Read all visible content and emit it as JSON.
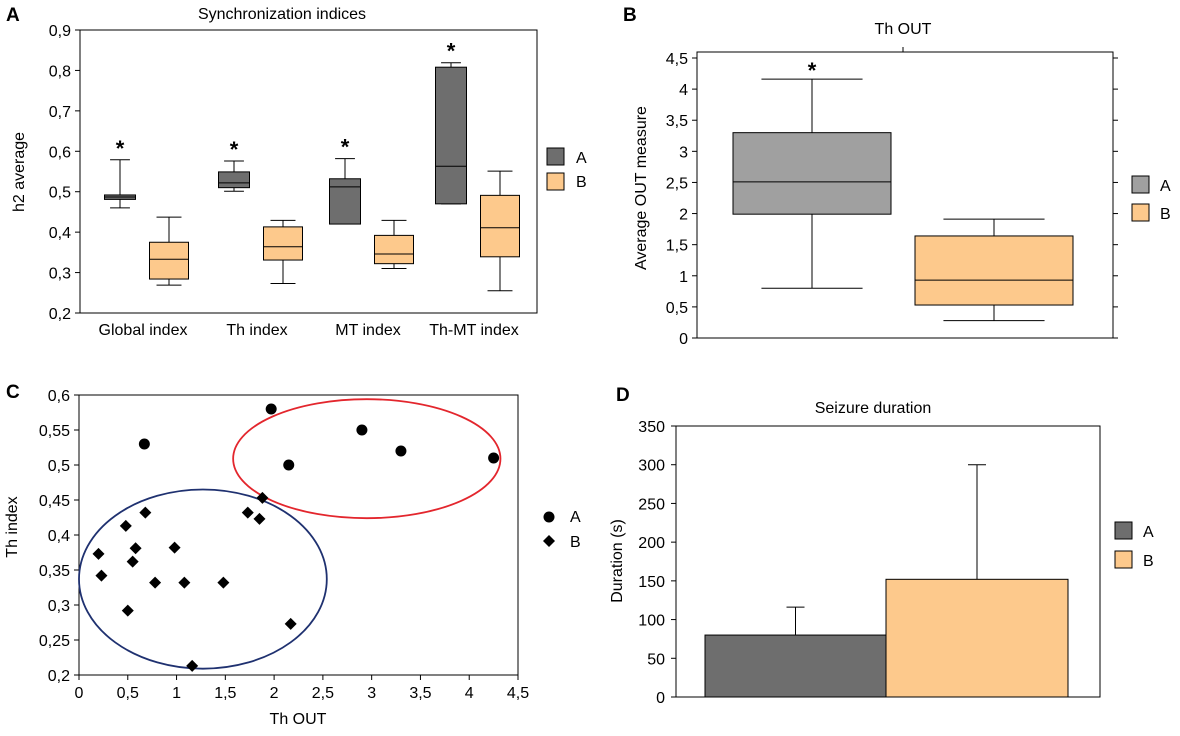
{
  "colors": {
    "group_a": "#6e6e6e",
    "group_a_light": "#a0a0a0",
    "group_b": "#fdc98c",
    "stroke": "#000000",
    "ellipse_red": "#e3262d",
    "ellipse_blue": "#1f3170"
  },
  "panels": {
    "A": {
      "letter": "A"
    },
    "B": {
      "letter": "B"
    },
    "C": {
      "letter": "C"
    },
    "D": {
      "letter": "D"
    }
  },
  "chart_data": [
    {
      "id": "A",
      "type": "box",
      "title": "Synchronization indices",
      "xlabel": "",
      "ylabel": "h2 average",
      "ylim": [
        0.2,
        0.9
      ],
      "yticks": [
        "0,2",
        "0,3",
        "0,4",
        "0,5",
        "0,6",
        "0,7",
        "0,8",
        "0,9"
      ],
      "categories": [
        "Global index",
        "Th index",
        "MT index",
        "Th-MT index"
      ],
      "legend": [
        "A",
        "B"
      ],
      "significance_marker": "*",
      "series": [
        {
          "name": "A",
          "boxes": [
            {
              "min": 0.46,
              "q1": 0.481,
              "median": 0.487,
              "q3": 0.492,
              "max": 0.579
            },
            {
              "min": 0.501,
              "q1": 0.51,
              "median": 0.522,
              "q3": 0.549,
              "max": 0.576
            },
            {
              "min": 0.42,
              "q1": 0.42,
              "median": 0.512,
              "q3": 0.532,
              "max": 0.582
            },
            {
              "min": 0.47,
              "q1": 0.47,
              "median": 0.563,
              "q3": 0.808,
              "max": 0.819
            }
          ]
        },
        {
          "name": "B",
          "boxes": [
            {
              "min": 0.269,
              "q1": 0.284,
              "median": 0.333,
              "q3": 0.375,
              "max": 0.437
            },
            {
              "min": 0.273,
              "q1": 0.331,
              "median": 0.364,
              "q3": 0.413,
              "max": 0.429
            },
            {
              "min": 0.31,
              "q1": 0.322,
              "median": 0.346,
              "q3": 0.392,
              "max": 0.429
            },
            {
              "min": 0.255,
              "q1": 0.339,
              "median": 0.411,
              "q3": 0.491,
              "max": 0.551
            }
          ]
        }
      ]
    },
    {
      "id": "B",
      "type": "box",
      "title": "Th OUT",
      "xlabel": "",
      "ylabel": "Average OUT measure",
      "ylim": [
        0,
        4.5
      ],
      "yticks": [
        "0",
        "0,5",
        "1",
        "1,5",
        "2",
        "2,5",
        "3",
        "3,5",
        "4",
        "4,5"
      ],
      "legend": [
        "A",
        "B"
      ],
      "significance_marker": "*",
      "series": [
        {
          "name": "A",
          "boxes": [
            {
              "min": 0.8,
              "q1": 1.99,
              "median": 2.51,
              "q3": 3.3,
              "max": 4.16
            }
          ]
        },
        {
          "name": "B",
          "boxes": [
            {
              "min": 0.28,
              "q1": 0.53,
              "median": 0.93,
              "q3": 1.64,
              "max": 1.91
            }
          ]
        }
      ]
    },
    {
      "id": "C",
      "type": "scatter",
      "title": "",
      "xlabel": "Th OUT",
      "ylabel": "Th index",
      "xlim": [
        0,
        4.5
      ],
      "ylim": [
        0.2,
        0.6
      ],
      "xticks": [
        "0",
        "0,5",
        "1",
        "1,5",
        "2",
        "2,5",
        "3",
        "3,5",
        "4",
        "4,5"
      ],
      "yticks": [
        "0,2",
        "0,25",
        "0,3",
        "0,35",
        "0,4",
        "0,45",
        "0,5",
        "0,55",
        "0,6"
      ],
      "legend": [
        "A",
        "B"
      ],
      "series": [
        {
          "name": "A",
          "marker": "circle",
          "points": [
            [
              0.67,
              0.53
            ],
            [
              1.97,
              0.58
            ],
            [
              2.15,
              0.5
            ],
            [
              2.9,
              0.55
            ],
            [
              3.3,
              0.52
            ],
            [
              4.25,
              0.51
            ]
          ]
        },
        {
          "name": "B",
          "marker": "diamond",
          "points": [
            [
              0.2,
              0.373
            ],
            [
              0.23,
              0.342
            ],
            [
              0.5,
              0.292
            ],
            [
              0.48,
              0.413
            ],
            [
              0.55,
              0.362
            ],
            [
              0.58,
              0.381
            ],
            [
              0.68,
              0.432
            ],
            [
              0.78,
              0.332
            ],
            [
              0.98,
              0.382
            ],
            [
              1.08,
              0.332
            ],
            [
              1.16,
              0.213
            ],
            [
              1.48,
              0.332
            ],
            [
              1.73,
              0.432
            ],
            [
              1.85,
              0.423
            ],
            [
              1.88,
              0.453
            ],
            [
              2.17,
              0.273
            ]
          ]
        }
      ],
      "ellipses": [
        {
          "color": "red",
          "cx": 2.95,
          "cy": 0.509,
          "rx": 1.37,
          "ry": 0.085
        },
        {
          "color": "blue",
          "cx": 1.27,
          "cy": 0.337,
          "rx": 1.27,
          "ry": 0.128
        }
      ]
    },
    {
      "id": "D",
      "type": "bar",
      "title": "Seizure duration",
      "xlabel": "",
      "ylabel": "Duration (s)",
      "ylim": [
        0,
        350
      ],
      "yticks": [
        "0",
        "50",
        "100",
        "150",
        "200",
        "250",
        "300",
        "350"
      ],
      "legend": [
        "A",
        "B"
      ],
      "series": [
        {
          "name": "A",
          "value": 80,
          "error": 36
        },
        {
          "name": "B",
          "value": 152,
          "error": 148
        }
      ]
    }
  ]
}
